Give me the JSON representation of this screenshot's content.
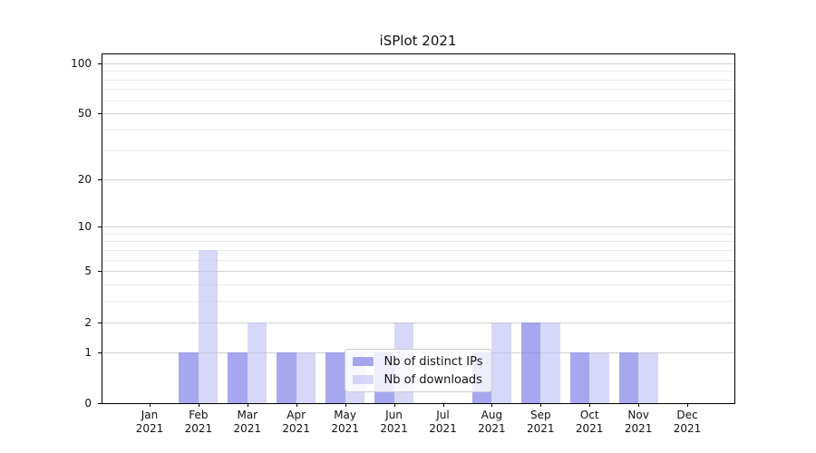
{
  "figure": {
    "title": "iSPlot 2021"
  },
  "colors": {
    "ips_bar": "rgba(122,122,232,0.66)",
    "downloads_bar": "rgba(186,186,241,0.58)",
    "grid_major": "#d2d2d2",
    "grid_minor": "#ebebeb",
    "axis": "#000000",
    "text": "#111111",
    "legend_bg": "rgba(255,255,255,0.8)",
    "legend_border": "#cccccc"
  },
  "chart_data": {
    "type": "bar",
    "title": "iSPlot 2021",
    "categories": [
      "Jan",
      "Feb",
      "Mar",
      "Apr",
      "May",
      "Jun",
      "Jul",
      "Aug",
      "Sep",
      "Oct",
      "Nov",
      "Dec"
    ],
    "year_label": "2021",
    "series": [
      {
        "key": "ips",
        "name": "Nb of distinct IPs",
        "values": [
          0,
          1,
          1,
          1,
          1,
          1,
          0,
          1,
          2,
          1,
          1,
          0
        ]
      },
      {
        "key": "downloads",
        "name": "Nb of downloads",
        "values": [
          0,
          7,
          2,
          1,
          1,
          2,
          0,
          2,
          2,
          1,
          1,
          0
        ]
      }
    ],
    "yticks": [
      0,
      1,
      2,
      5,
      10,
      20,
      50,
      100
    ],
    "minor_gridlines": [
      3,
      4,
      6,
      7,
      8,
      9,
      30,
      40,
      60,
      70,
      80,
      90
    ],
    "scale": "log1p",
    "ylim": [
      0,
      113
    ],
    "xlabel": "",
    "ylabel": "",
    "grid": true,
    "legend_position": "lower center"
  }
}
